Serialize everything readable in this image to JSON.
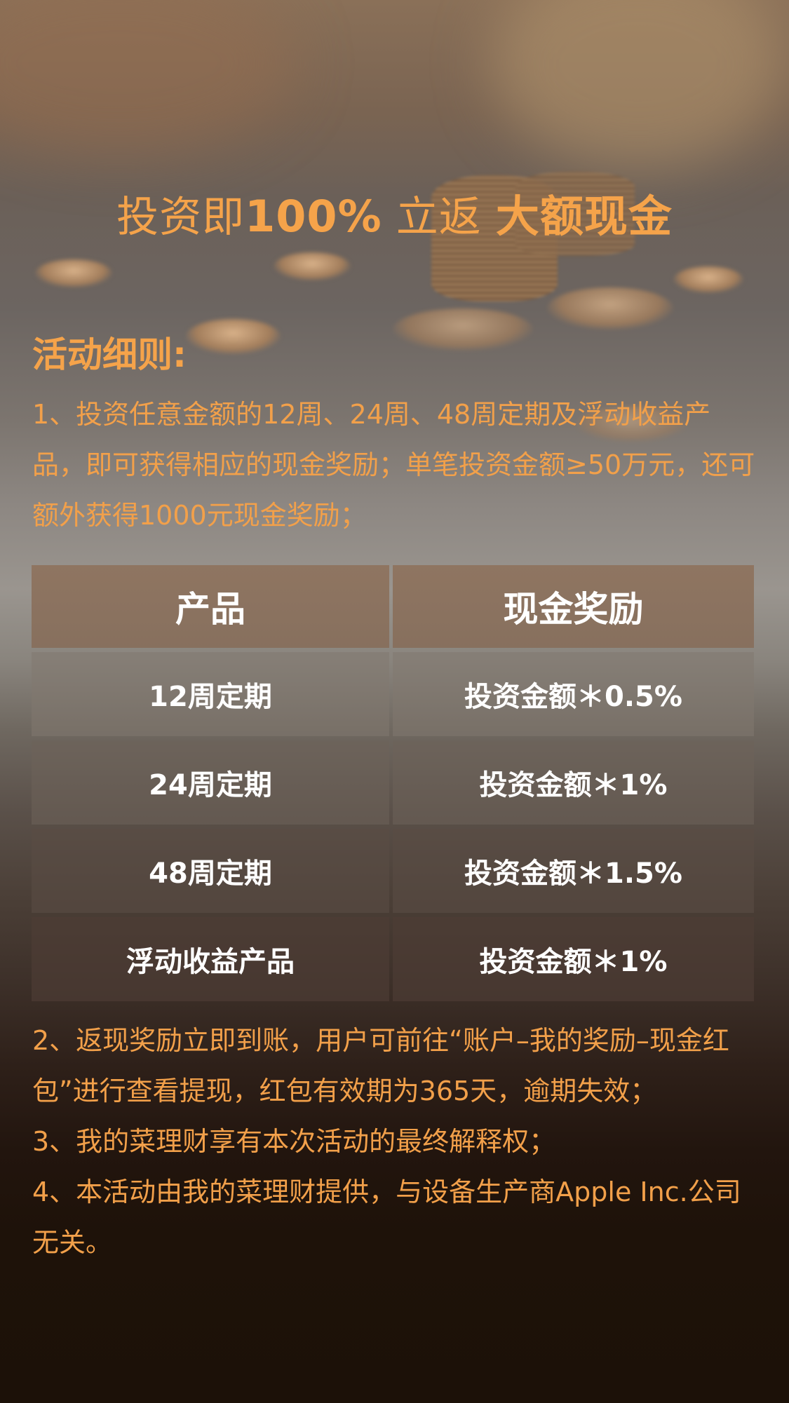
{
  "hero": {
    "title_part1": "投资即",
    "title_part2": "100%",
    "title_part3": " 立返 ",
    "title_part4": "大额现金"
  },
  "rules": {
    "heading": "活动细则:",
    "rule_1": "1、投资任意金额的12周、24周、48周定期及浮动收益产品，即可获得相应的现金奖励；单笔投资金额≥50万元，还可额外获得1000元现金奖励；",
    "rule_2": "2、返现奖励立即到账，用户可前往“账户–我的奖励–现金红包”进行查看提现，红包有效期为365天，逾期失效；",
    "rule_3": "3、我的菜理财享有本次活动的最终解释权；",
    "rule_4": "4、本活动由我的菜理财提供，与设备生产商Apple Inc.公司无关。"
  },
  "table": {
    "headers": [
      "产品",
      "现金奖励"
    ],
    "rows": [
      [
        "12周定期",
        "投资金额＊0.5%"
      ],
      [
        "24周定期",
        "投资金额＊1%"
      ],
      [
        "48周定期",
        "投资金额＊1.5%"
      ],
      [
        "浮动收益产品",
        "投资金额＊1%"
      ]
    ]
  },
  "colors": {
    "accent": "#f5a34a",
    "header_bg": "#8f7561",
    "page_bottom": "#1c1108"
  }
}
